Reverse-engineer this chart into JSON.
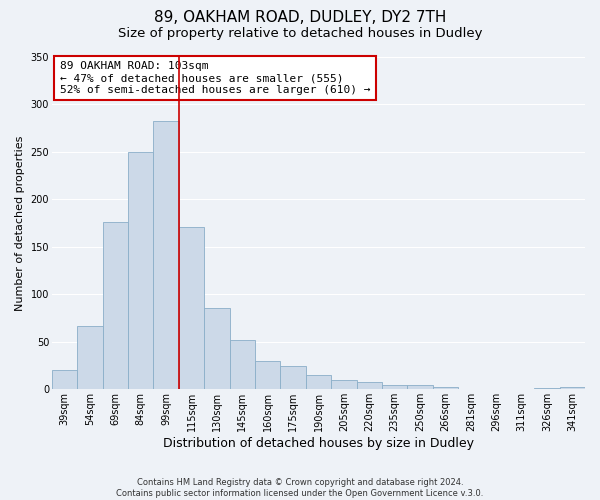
{
  "title": "89, OAKHAM ROAD, DUDLEY, DY2 7TH",
  "subtitle": "Size of property relative to detached houses in Dudley",
  "xlabel": "Distribution of detached houses by size in Dudley",
  "ylabel": "Number of detached properties",
  "bar_color": "#ccd9e8",
  "bar_edge_color": "#8aaec8",
  "background_color": "#eef2f7",
  "grid_color": "#ffffff",
  "categories": [
    "39sqm",
    "54sqm",
    "69sqm",
    "84sqm",
    "99sqm",
    "115sqm",
    "130sqm",
    "145sqm",
    "160sqm",
    "175sqm",
    "190sqm",
    "205sqm",
    "220sqm",
    "235sqm",
    "250sqm",
    "266sqm",
    "281sqm",
    "296sqm",
    "311sqm",
    "326sqm",
    "341sqm"
  ],
  "values": [
    20,
    67,
    176,
    250,
    282,
    171,
    85,
    52,
    30,
    24,
    15,
    10,
    8,
    5,
    4,
    2,
    0,
    0,
    0,
    1,
    2
  ],
  "vline_x": 4.5,
  "vline_color": "#cc0000",
  "annotation_text": "89 OAKHAM ROAD: 103sqm\n← 47% of detached houses are smaller (555)\n52% of semi-detached houses are larger (610) →",
  "annotation_box_color": "#ffffff",
  "annotation_box_edge": "#cc0000",
  "ylim": [
    0,
    350
  ],
  "yticks": [
    0,
    50,
    100,
    150,
    200,
    250,
    300,
    350
  ],
  "footnote": "Contains HM Land Registry data © Crown copyright and database right 2024.\nContains public sector information licensed under the Open Government Licence v.3.0.",
  "title_fontsize": 11,
  "subtitle_fontsize": 9.5,
  "xlabel_fontsize": 9,
  "ylabel_fontsize": 8,
  "tick_fontsize": 7,
  "annotation_fontsize": 8
}
